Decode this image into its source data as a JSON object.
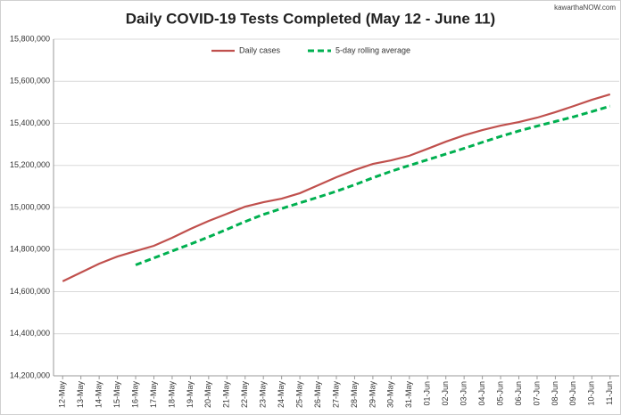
{
  "chart_data": {
    "type": "line",
    "title": "Daily COVID-19 Tests Completed (May 12 - June 11)",
    "source": "kawarthaNOW.com",
    "categories": [
      "12-May",
      "13-May",
      "14-May",
      "15-May",
      "16-May",
      "17-May",
      "18-May",
      "19-May",
      "20-May",
      "21-May",
      "22-May",
      "23-May",
      "24-May",
      "25-May",
      "26-May",
      "27-May",
      "28-May",
      "29-May",
      "30-May",
      "31-May",
      "01-Jun",
      "02-Jun",
      "03-Jun",
      "04-Jun",
      "05-Jun",
      "06-Jun",
      "07-Jun",
      "08-Jun",
      "09-Jun",
      "10-Jun",
      "11-Jun"
    ],
    "series": [
      {
        "name": "Daily cases",
        "color": "#c0504d",
        "dashed": false,
        "values": [
          14649000,
          14691000,
          14733000,
          14767000,
          14793000,
          14818000,
          14856000,
          14898000,
          14936000,
          14970000,
          15004000,
          15025000,
          15042000,
          15068000,
          15106000,
          15144000,
          15178000,
          15207000,
          15224000,
          15246000,
          15279000,
          15313000,
          15343000,
          15368000,
          15389000,
          15406000,
          15427000,
          15453000,
          15482000,
          15512000,
          15538000
        ]
      },
      {
        "name": "5-day rolling average",
        "color": "#00b050",
        "dashed": true,
        "values": [
          null,
          null,
          null,
          null,
          14727000,
          14760000,
          14793000,
          14826000,
          14860000,
          14896000,
          14933000,
          14967000,
          14995000,
          15022000,
          15049000,
          15077000,
          15108000,
          15141000,
          15172000,
          15200000,
          15227000,
          15254000,
          15281000,
          15310000,
          15338000,
          15364000,
          15387000,
          15409000,
          15431000,
          15456000,
          15482000
        ]
      }
    ],
    "ylim": [
      14200000,
      15800000
    ],
    "yticks": [
      {
        "value": 14200000,
        "label": "14,200,000"
      },
      {
        "value": 14400000,
        "label": "14,400,000"
      },
      {
        "value": 14600000,
        "label": "14,600,000"
      },
      {
        "value": 14800000,
        "label": "14,800,000"
      },
      {
        "value": 15000000,
        "label": "15,000,000"
      },
      {
        "value": 15200000,
        "label": "15,200,000"
      },
      {
        "value": 15400000,
        "label": "15,400,000"
      },
      {
        "value": 15600000,
        "label": "15,600,000"
      },
      {
        "value": 15800000,
        "label": "15,800,000"
      }
    ],
    "grid": true,
    "legend": "top"
  }
}
